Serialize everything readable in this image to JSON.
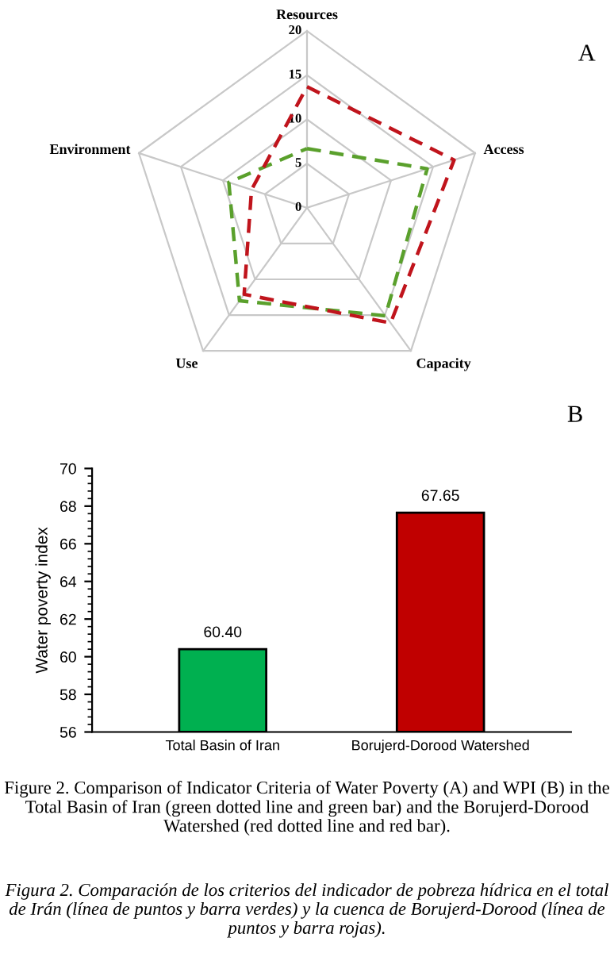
{
  "chart_data": [
    {
      "type": "radar",
      "categories": [
        "Resources",
        "Access",
        "Capacity",
        "Use",
        "Environment"
      ],
      "ylim": [
        0,
        20
      ],
      "yticks": [
        0,
        5,
        10,
        15,
        20
      ],
      "grid": true,
      "line_style": "dashed",
      "annotations": [
        "A"
      ],
      "series": [
        {
          "color": "#5aa02c",
          "values": [
            6.7,
            14.3,
            15.1,
            13.0,
            9.3
          ]
        },
        {
          "color": "#c0141c",
          "values": [
            13.7,
            17.5,
            16.1,
            12.1,
            6.6
          ]
        }
      ]
    },
    {
      "type": "bar",
      "categories": [
        "Total Basin of Iran",
        "Borujerd-Dorood Watershed"
      ],
      "values": [
        60.4,
        67.65
      ],
      "colors": [
        "#00b050",
        "#c00000"
      ],
      "value_labels": [
        "60.40",
        "67.65"
      ],
      "ylabel": "Water poverty index",
      "ylim": [
        56,
        70
      ],
      "yticks": [
        56,
        58,
        60,
        62,
        64,
        66,
        68,
        70
      ],
      "grid": false,
      "annotations": [
        "B",
        "Figure 2. Comparison of Indicator Criteria of Water Poverty (A) and WPI (B) in the Total Basin of Iran (green dotted line and green bar) and the Borujerd-Dorood Watershed (red dotted line and red bar).",
        "Figura 2. Comparación de los criterios del indicador de pobreza hídrica en el total de Irán (línea de puntos y barra verdes) y la cuenca de Borujerd-Dorood (línea de puntos y barra rojas)."
      ]
    }
  ]
}
